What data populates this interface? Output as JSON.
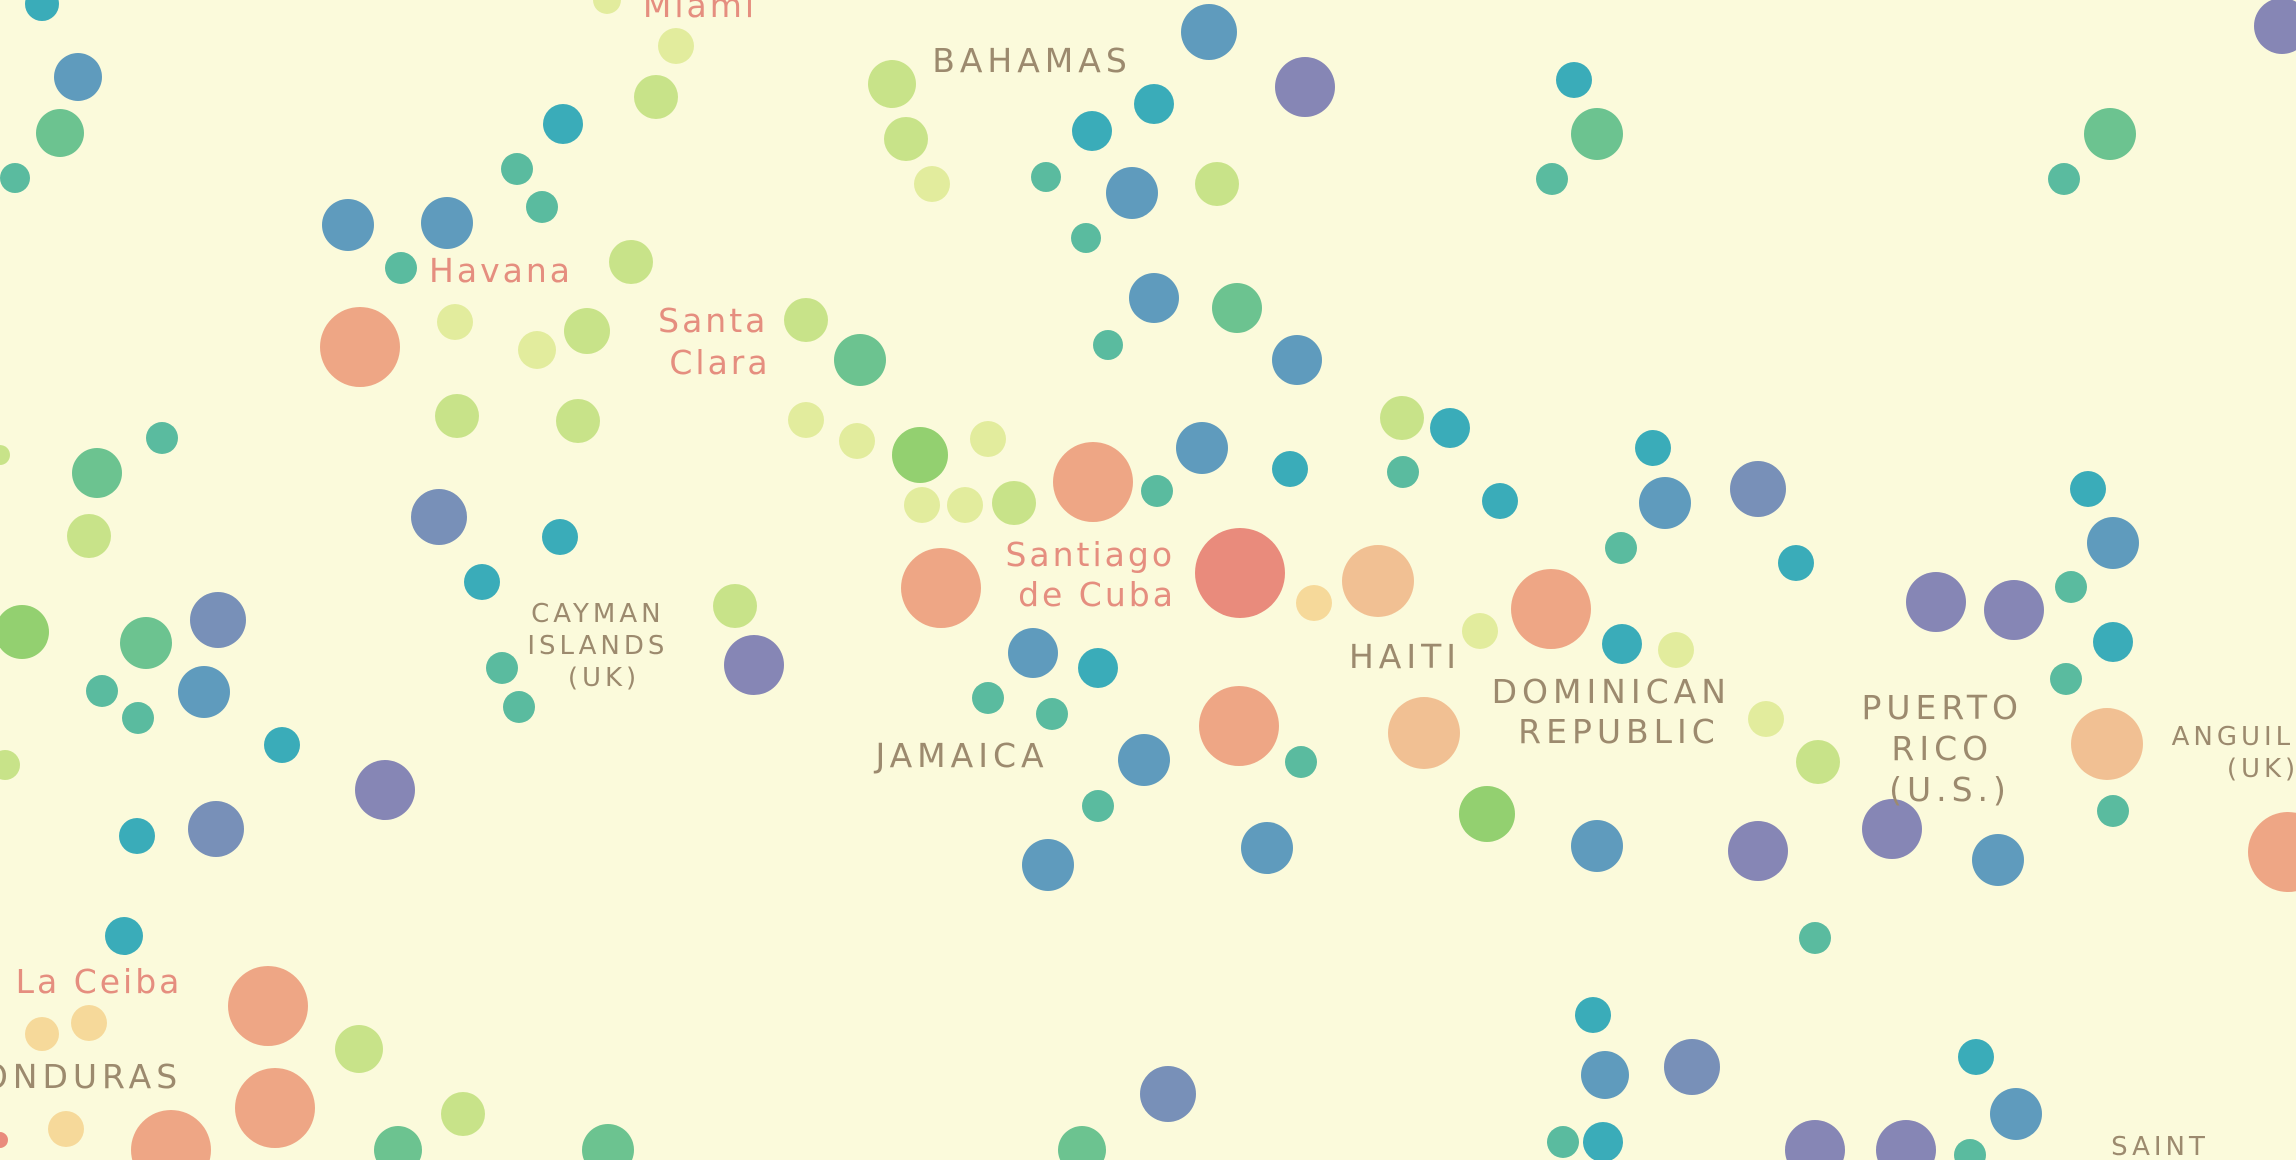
{
  "colors": {
    "background": "#fbfadb",
    "city_label": "#e58e7f",
    "country_label": "#9c8a6e",
    "blue": "#5f9bbd",
    "slate": "#7890b8",
    "violet": "#8686b5",
    "teal": "#5abb9f",
    "cyan": "#3aacb9",
    "green": "#6cc390",
    "lime": "#93d070",
    "yellowgreen": "#c8e389",
    "paleyellow": "#e2ec9d",
    "salmon": "#eea685",
    "red": "#e98b7c",
    "peach": "#f1c093",
    "sand": "#f6d99a"
  },
  "city_labels": [
    {
      "id": "miami",
      "lines": [
        "Miami"
      ]
    },
    {
      "id": "havana",
      "lines": [
        "Havana"
      ]
    },
    {
      "id": "santa-clara",
      "lines": [
        "Santa",
        "Clara"
      ]
    },
    {
      "id": "santiago-de-cuba",
      "lines": [
        "Santiago",
        "de Cuba"
      ]
    },
    {
      "id": "la-ceiba",
      "lines": [
        "La Ceiba"
      ]
    }
  ],
  "country_labels": [
    {
      "id": "bahamas",
      "lines": [
        "BAHAMAS"
      ]
    },
    {
      "id": "cayman-islands",
      "lines": [
        "CAYMAN",
        "ISLANDS",
        "(UK)"
      ]
    },
    {
      "id": "jamaica",
      "lines": [
        "JAMAICA"
      ]
    },
    {
      "id": "haiti",
      "lines": [
        "HAITI"
      ]
    },
    {
      "id": "dominican-republic",
      "lines": [
        "DOMINICAN",
        "REPUBLIC"
      ]
    },
    {
      "id": "puerto-rico",
      "lines": [
        "PUERTO",
        "RICO",
        "(U.S.)"
      ]
    },
    {
      "id": "anguilla",
      "lines": [
        "ANGUIL",
        "(UK)"
      ]
    },
    {
      "id": "honduras",
      "lines": [
        "ONDURAS"
      ]
    },
    {
      "id": "saint",
      "lines": [
        "SAINT"
      ]
    }
  ]
}
